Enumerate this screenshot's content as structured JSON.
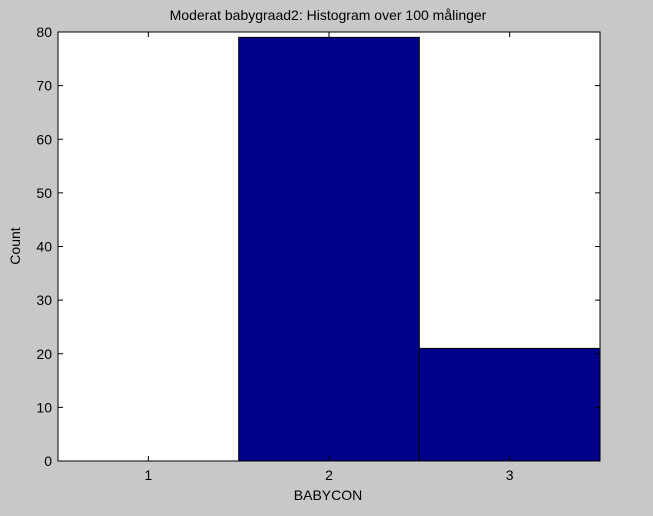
{
  "colors": {
    "figure_bg": "#c8c8c8",
    "axes_bg": "#ffffff",
    "bar_fill": "#00008b",
    "axis": "#000000"
  },
  "chart_data": {
    "type": "bar",
    "title": "Moderat babygraad2: Histogram over 100 målinger",
    "xlabel": "BABYCON",
    "ylabel": "Count",
    "categories": [
      "1",
      "2",
      "3"
    ],
    "values": [
      0,
      79,
      21
    ],
    "xlim": [
      0.5,
      3.5
    ],
    "ylim": [
      0,
      80
    ],
    "yticks": [
      0,
      10,
      20,
      30,
      40,
      50,
      60,
      70,
      80
    ],
    "grid": false,
    "legend": "none"
  }
}
